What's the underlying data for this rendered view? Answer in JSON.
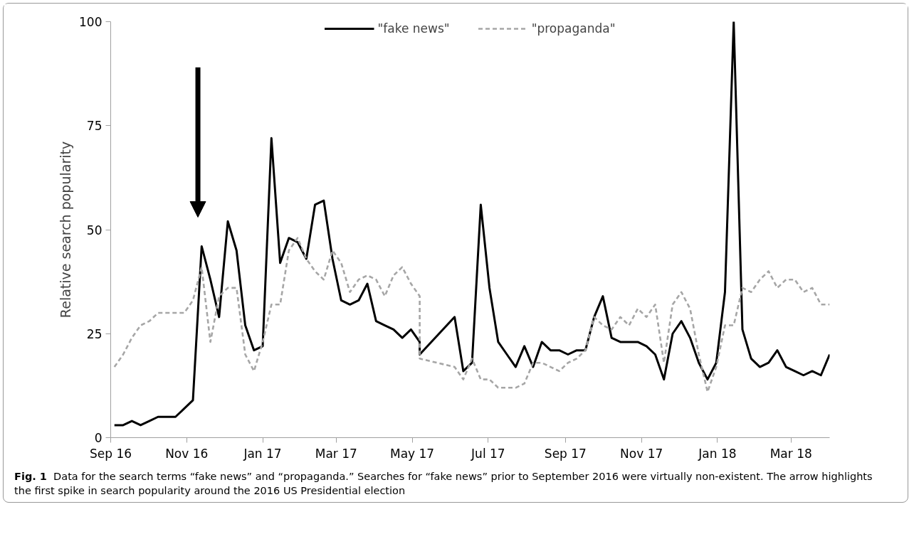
{
  "chart_data": {
    "type": "line",
    "ylabel": "Relative search popularity",
    "annotations": [
      "Fig. 1",
      "Data for the search terms “fake news” and “propaganda.” Searches for “fake news” prior to September 2016 were virtually non-existent. The arrow highlights the first spike in search popularity around the 2016 US Presidential election"
    ],
    "xlim": [
      "2016-09-01",
      "2018-04-01"
    ],
    "xticks": [
      {
        "value": "2016-09-01",
        "label": "Sep 16"
      },
      {
        "value": "2016-11-01",
        "label": "Nov 16"
      },
      {
        "value": "2017-01-01",
        "label": "Jan 17"
      },
      {
        "value": "2017-03-01",
        "label": "Mar 17"
      },
      {
        "value": "2017-05-01",
        "label": "May 17"
      },
      {
        "value": "2017-07-01",
        "label": "Jul 17"
      },
      {
        "value": "2017-09-01",
        "label": "Sep 17"
      },
      {
        "value": "2017-11-01",
        "label": "Nov 17"
      },
      {
        "value": "2018-01-01",
        "label": "Jan 18"
      },
      {
        "value": "2018-03-01",
        "label": "Mar 18"
      }
    ],
    "ylim": [
      0,
      100
    ],
    "yticks": [
      0,
      25,
      50,
      75,
      100
    ],
    "grid": false,
    "legend": "top",
    "marker": "none",
    "series": [
      {
        "name": "\"fake news\"",
        "color": "#000000",
        "line_style": "solid",
        "x": [
          "2016-09-04",
          "2016-09-11",
          "2016-09-18",
          "2016-09-25",
          "2016-10-02",
          "2016-10-09",
          "2016-10-16",
          "2016-10-23",
          "2016-10-30",
          "2016-11-06",
          "2016-11-13",
          "2016-11-20",
          "2016-11-27",
          "2016-12-04",
          "2016-12-11",
          "2016-12-18",
          "2016-12-25",
          "2017-01-01",
          "2017-01-08",
          "2017-01-15",
          "2017-01-22",
          "2017-01-29",
          "2017-02-05",
          "2017-02-12",
          "2017-02-19",
          "2017-02-26",
          "2017-03-05",
          "2017-03-12",
          "2017-03-19",
          "2017-03-26",
          "2017-04-02",
          "2017-04-09",
          "2017-04-16",
          "2017-04-23",
          "2017-04-30",
          "2017-05-07",
          "2017-05-07",
          "2017-06-04",
          "2017-06-11",
          "2017-06-18",
          "2017-06-25",
          "2017-07-02",
          "2017-07-09",
          "2017-07-16",
          "2017-07-23",
          "2017-07-30",
          "2017-08-06",
          "2017-08-13",
          "2017-08-20",
          "2017-08-27",
          "2017-09-03",
          "2017-09-10",
          "2017-09-17",
          "2017-09-24",
          "2017-10-01",
          "2017-10-08",
          "2017-10-15",
          "2017-10-22",
          "2017-10-29",
          "2017-11-05",
          "2017-11-12",
          "2017-11-19",
          "2017-11-26",
          "2017-12-03",
          "2017-12-10",
          "2017-12-17",
          "2017-12-24",
          "2017-12-31",
          "2018-01-07",
          "2018-01-14",
          "2018-01-21",
          "2018-01-28",
          "2018-02-04",
          "2018-02-11",
          "2018-02-18",
          "2018-02-25",
          "2018-03-04",
          "2018-03-11",
          "2018-03-18",
          "2018-03-25",
          "2018-04-01"
        ],
        "values": [
          3,
          3,
          4,
          3,
          4,
          5,
          5,
          5,
          7,
          9,
          46,
          38,
          29,
          52,
          45,
          27,
          21,
          22,
          72,
          42,
          48,
          47,
          43,
          56,
          57,
          43,
          33,
          32,
          33,
          37,
          28,
          27,
          26,
          24,
          26,
          23,
          20,
          29,
          16,
          18,
          56,
          36,
          23,
          20,
          17,
          22,
          17,
          23,
          21,
          21,
          20,
          21,
          21,
          29,
          34,
          24,
          23,
          23,
          23,
          22,
          20,
          14,
          25,
          28,
          24,
          18,
          14,
          18,
          35,
          100,
          26,
          19,
          17,
          18,
          21,
          17,
          16,
          15,
          16,
          15,
          20
        ]
      },
      {
        "name": "\"propaganda\"",
        "color": "#a6a6a6",
        "line_style": "dashed",
        "x": [
          "2016-09-04",
          "2016-09-11",
          "2016-09-18",
          "2016-09-25",
          "2016-10-02",
          "2016-10-09",
          "2016-10-16",
          "2016-10-23",
          "2016-10-30",
          "2016-11-06",
          "2016-11-13",
          "2016-11-20",
          "2016-11-27",
          "2016-12-04",
          "2016-12-11",
          "2016-12-18",
          "2016-12-25",
          "2017-01-01",
          "2017-01-08",
          "2017-01-15",
          "2017-01-22",
          "2017-01-29",
          "2017-02-05",
          "2017-02-12",
          "2017-02-19",
          "2017-02-26",
          "2017-03-05",
          "2017-03-12",
          "2017-03-19",
          "2017-03-26",
          "2017-04-02",
          "2017-04-09",
          "2017-04-16",
          "2017-04-23",
          "2017-04-30",
          "2017-05-07",
          "2017-05-07",
          "2017-06-04",
          "2017-06-11",
          "2017-06-18",
          "2017-06-25",
          "2017-07-02",
          "2017-07-09",
          "2017-07-16",
          "2017-07-23",
          "2017-07-30",
          "2017-08-06",
          "2017-08-13",
          "2017-08-20",
          "2017-08-27",
          "2017-09-03",
          "2017-09-10",
          "2017-09-17",
          "2017-09-24",
          "2017-10-01",
          "2017-10-08",
          "2017-10-15",
          "2017-10-22",
          "2017-10-29",
          "2017-11-05",
          "2017-11-12",
          "2017-11-19",
          "2017-11-26",
          "2017-12-03",
          "2017-12-10",
          "2017-12-17",
          "2017-12-24",
          "2017-12-31",
          "2018-01-07",
          "2018-01-14",
          "2018-01-21",
          "2018-01-28",
          "2018-02-04",
          "2018-02-11",
          "2018-02-18",
          "2018-02-25",
          "2018-03-04",
          "2018-03-11",
          "2018-03-18",
          "2018-03-25",
          "2018-04-01"
        ],
        "values": [
          17,
          20,
          24,
          27,
          28,
          30,
          30,
          30,
          30,
          33,
          41,
          23,
          34,
          36,
          36,
          20,
          16,
          23,
          32,
          32,
          45,
          48,
          43,
          40,
          38,
          45,
          42,
          35,
          38,
          39,
          38,
          34,
          39,
          41,
          37,
          34,
          19,
          17,
          14,
          19,
          14,
          14,
          12,
          12,
          12,
          13,
          18,
          18,
          17,
          16,
          18,
          19,
          21,
          29,
          27,
          26,
          29,
          27,
          31,
          29,
          32,
          18,
          32,
          35,
          31,
          20,
          11,
          17,
          27,
          27,
          36,
          35,
          38,
          40,
          36,
          38,
          38,
          35,
          36,
          32,
          32
        ]
      }
    ]
  }
}
